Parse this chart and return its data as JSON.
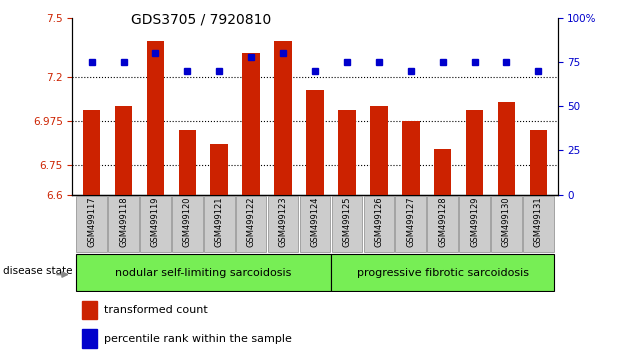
{
  "title": "GDS3705 / 7920810",
  "samples": [
    "GSM499117",
    "GSM499118",
    "GSM499119",
    "GSM499120",
    "GSM499121",
    "GSM499122",
    "GSM499123",
    "GSM499124",
    "GSM499125",
    "GSM499126",
    "GSM499127",
    "GSM499128",
    "GSM499129",
    "GSM499130",
    "GSM499131"
  ],
  "bar_values": [
    7.03,
    7.05,
    7.38,
    6.93,
    6.86,
    7.32,
    7.38,
    7.13,
    7.03,
    7.05,
    6.975,
    6.83,
    7.03,
    7.07,
    6.93
  ],
  "percentile_values": [
    75,
    75,
    80,
    70,
    70,
    78,
    80,
    70,
    75,
    75,
    70,
    75,
    75,
    75,
    70
  ],
  "ylim_left": [
    6.6,
    7.5
  ],
  "ylim_right": [
    0,
    100
  ],
  "yticks_left": [
    6.6,
    6.75,
    6.975,
    7.2,
    7.5
  ],
  "ytick_labels_left": [
    "6.6",
    "6.75",
    "6.975",
    "7.2",
    "7.5"
  ],
  "yticks_right": [
    0,
    25,
    50,
    75,
    100
  ],
  "ytick_labels_right": [
    "0",
    "25",
    "50",
    "75",
    "100%"
  ],
  "hlines": [
    6.75,
    6.975,
    7.2
  ],
  "bar_color": "#cc2200",
  "dot_color": "#0000cc",
  "group1_label": "nodular self-limiting sarcoidosis",
  "group2_label": "progressive fibrotic sarcoidosis",
  "group1_count": 8,
  "group2_count": 7,
  "disease_state_label": "disease state",
  "legend_bar_label": "transformed count",
  "legend_dot_label": "percentile rank within the sample",
  "ybaseline": 6.6,
  "green_color": "#77ee55",
  "grey_color": "#cccccc"
}
